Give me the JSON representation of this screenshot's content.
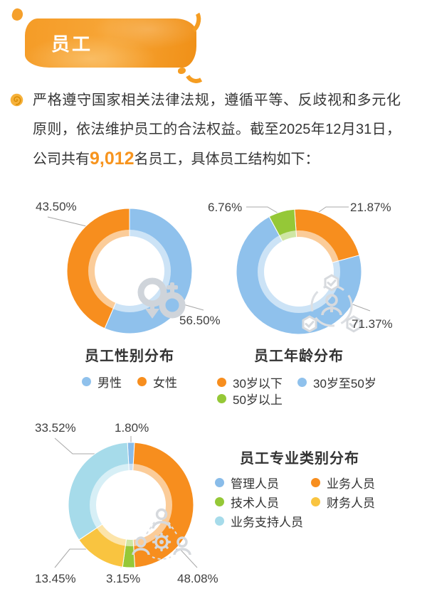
{
  "header": {
    "title": "员工"
  },
  "intro": {
    "text_before": "严格遵守国家相关法律法规，遵循平等、反歧视和多元化原则，依法维护员工的合法权益。截至2025年12月31日，公司共有",
    "headcount": "9,012",
    "text_after": "名员工，具体员工结构如下："
  },
  "colors": {
    "accent_orange": "#F7941E",
    "slice_blue": "#8FC1EC",
    "slice_orange": "#F78E1E",
    "slice_green": "#95C837",
    "slice_yellow": "#F9C440",
    "slice_cyan": "#A6DBEA",
    "leader_line": "#A8A8A8",
    "icon_gray": "#CFD4DA"
  },
  "chart_data": [
    {
      "type": "pie",
      "variant": "donut",
      "title": "员工性别分布",
      "legend_position": "bottom",
      "start_offset_deg": 0,
      "slices": [
        {
          "name": "男性",
          "value": 56.5,
          "label": "56.50%",
          "color": "#8FC1EC"
        },
        {
          "name": "女性",
          "value": 43.5,
          "label": "43.50%",
          "color": "#F78E1E"
        }
      ]
    },
    {
      "type": "pie",
      "variant": "donut",
      "title": "员工年龄分布",
      "legend_position": "bottom",
      "start_offset_deg": -4,
      "slices": [
        {
          "name": "30岁以下",
          "value": 21.87,
          "label": "21.87%",
          "color": "#F78E1E"
        },
        {
          "name": "30岁至50岁",
          "value": 71.37,
          "label": "71.37%",
          "color": "#8FC1EC"
        },
        {
          "name": "50岁以上",
          "value": 6.76,
          "label": "6.76%",
          "color": "#95C837"
        }
      ]
    },
    {
      "type": "pie",
      "variant": "donut",
      "title": "员工专业类别分布",
      "legend_position": "right",
      "start_offset_deg": -3.2,
      "slices": [
        {
          "name": "管理人员",
          "value": 1.8,
          "label": "1.80%",
          "color": "#89BCE9"
        },
        {
          "name": "业务人员",
          "value": 48.08,
          "label": "48.08%",
          "color": "#F78E1E"
        },
        {
          "name": "技术人员",
          "value": 3.15,
          "label": "3.15%",
          "color": "#95C837"
        },
        {
          "name": "财务人员",
          "value": 13.45,
          "label": "13.45%",
          "color": "#F9C440"
        },
        {
          "name": "业务支持人员",
          "value": 33.52,
          "label": "33.52%",
          "color": "#A6DBEA"
        }
      ]
    }
  ]
}
